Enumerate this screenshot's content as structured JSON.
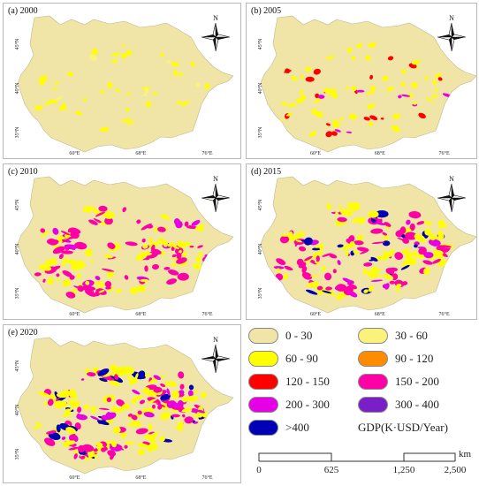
{
  "panels": [
    {
      "label": "(a) 2000",
      "level": 0
    },
    {
      "label": "(b) 2005",
      "level": 1
    },
    {
      "label": "(c) 2010",
      "level": 2
    },
    {
      "label": "(d) 2015",
      "level": 3
    },
    {
      "label": "(e) 2020",
      "level": 4
    }
  ],
  "map": {
    "north_label": "N",
    "lat_labels": [
      "45°N",
      "40°N",
      "35°N"
    ],
    "lon_labels": [
      "60°E",
      "68°E",
      "76°E"
    ],
    "base_color": "#f0e5a6",
    "outline_color": "#bdb892"
  },
  "legend": {
    "items": [
      {
        "label": "0 - 30",
        "color": "#f0e5a6"
      },
      {
        "label": "30 - 60",
        "color": "#faf27a"
      },
      {
        "label": "60 - 90",
        "color": "#ffff00"
      },
      {
        "label": "90 - 120",
        "color": "#ff8c00"
      },
      {
        "label": "120 - 150",
        "color": "#ff0000"
      },
      {
        "label": "150 - 200",
        "color": "#ff00a8"
      },
      {
        "label": "200 - 300",
        "color": "#e600e6"
      },
      {
        "label": "300 - 400",
        "color": "#7a1fc8"
      },
      {
        "label": ">400",
        "color": "#0000b4"
      }
    ],
    "unit": "GDP(K·USD/Year)"
  },
  "scale": {
    "labels": [
      "0",
      "625",
      "1,250",
      "2,500"
    ],
    "unit": "km"
  }
}
